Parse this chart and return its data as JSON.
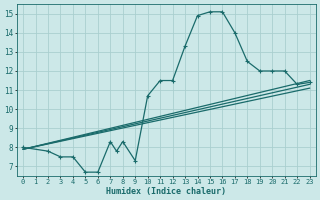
{
  "bg_color": "#cce8e8",
  "grid_color": "#aacfcf",
  "line_color": "#1a6b6b",
  "xlabel": "Humidex (Indice chaleur)",
  "xlim": [
    -0.5,
    23.5
  ],
  "ylim": [
    6.5,
    15.5
  ],
  "xticks": [
    0,
    1,
    2,
    3,
    4,
    5,
    6,
    7,
    8,
    9,
    10,
    11,
    12,
    13,
    14,
    15,
    16,
    17,
    18,
    19,
    20,
    21,
    22,
    23
  ],
  "yticks": [
    7,
    8,
    9,
    10,
    11,
    12,
    13,
    14,
    15
  ],
  "curve1_x": [
    0,
    2,
    3,
    4,
    5,
    6,
    7,
    7.5,
    8,
    9,
    10,
    11,
    12,
    13,
    14,
    15,
    16,
    17,
    18,
    19,
    20,
    21,
    22,
    23
  ],
  "curve1_y": [
    8.0,
    7.8,
    7.5,
    7.5,
    6.7,
    6.7,
    8.3,
    7.8,
    8.3,
    7.3,
    10.7,
    11.5,
    11.5,
    13.3,
    14.9,
    15.1,
    15.1,
    14.0,
    12.5,
    12.0,
    12.0,
    12.0,
    11.3,
    11.4
  ],
  "trend1_x": [
    0,
    23
  ],
  "trend1_y": [
    7.9,
    11.5
  ],
  "trend2_x": [
    0,
    23
  ],
  "trend2_y": [
    7.9,
    11.3
  ],
  "trend3_x": [
    0,
    23
  ],
  "trend3_y": [
    7.9,
    11.1
  ]
}
